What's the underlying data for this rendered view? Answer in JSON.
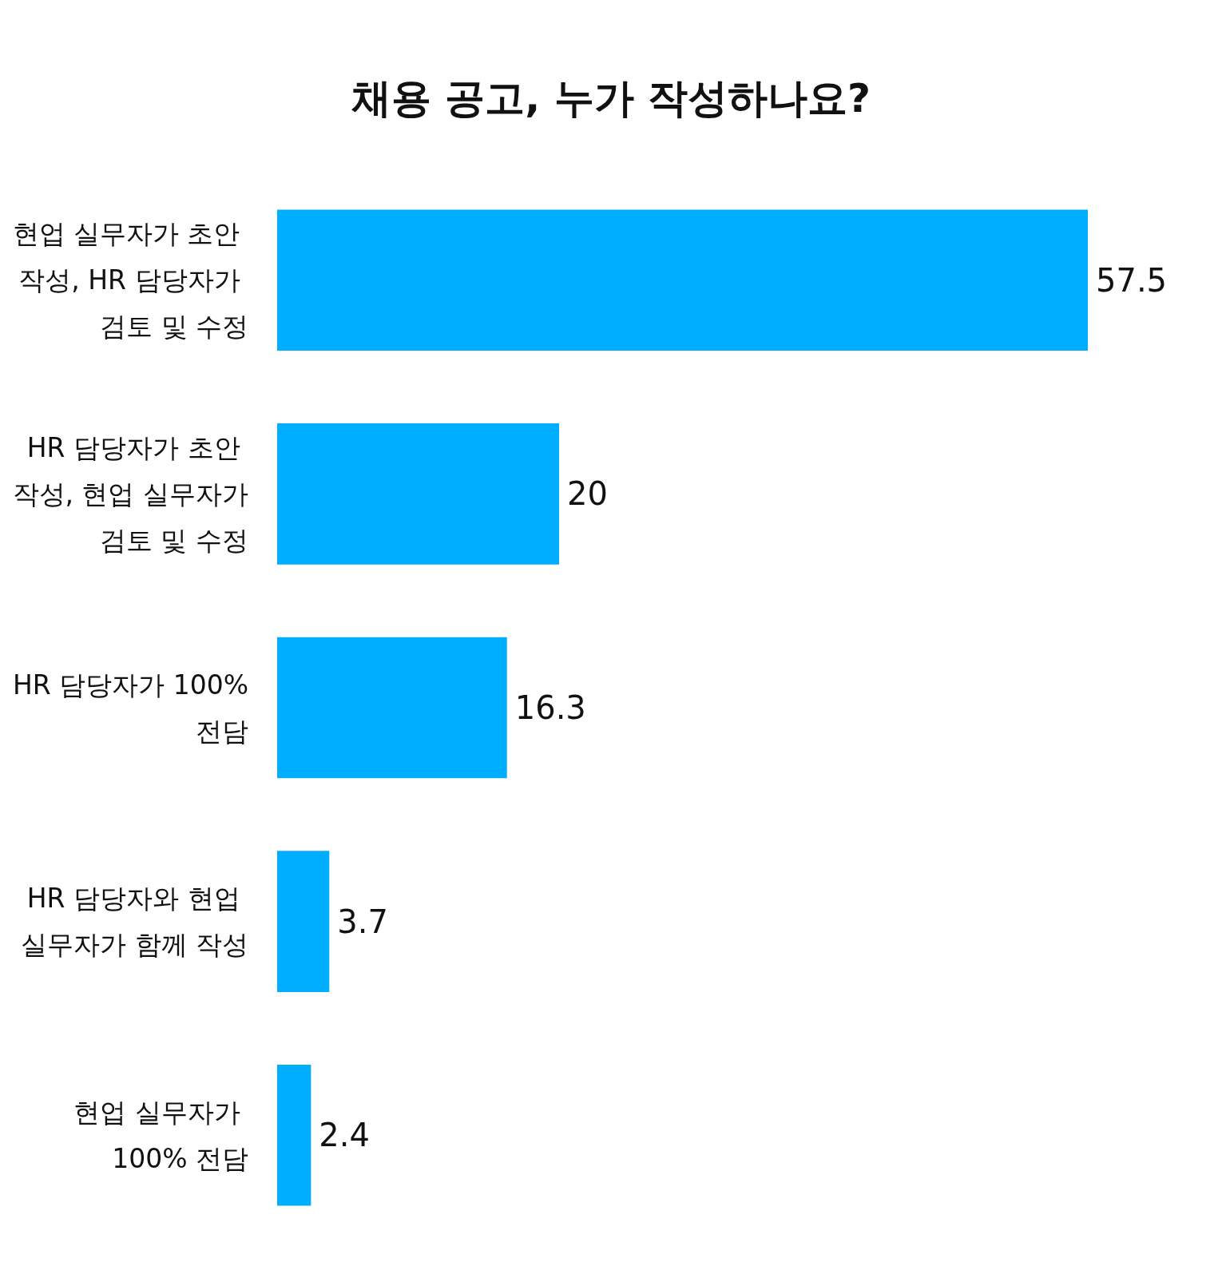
{
  "chart_data": {
    "type": "bar",
    "orientation": "horizontal",
    "title": "채용 공고, 누가 작성하나요?",
    "categories": [
      "현업 실무자가 초안 작성, HR 담당자가 검토 및 수정",
      "HR 담당자가 초안 작성, 현업 실무자가 검토 및 수정",
      "HR 담당자가 100% 전담",
      "HR 담당자와 현업 실무자가 함께 작성",
      "현업 실무자가 100% 전담"
    ],
    "values": [
      57.5,
      20,
      16.3,
      3.7,
      2.4
    ],
    "color": "#00aeff",
    "data_labels": true
  }
}
